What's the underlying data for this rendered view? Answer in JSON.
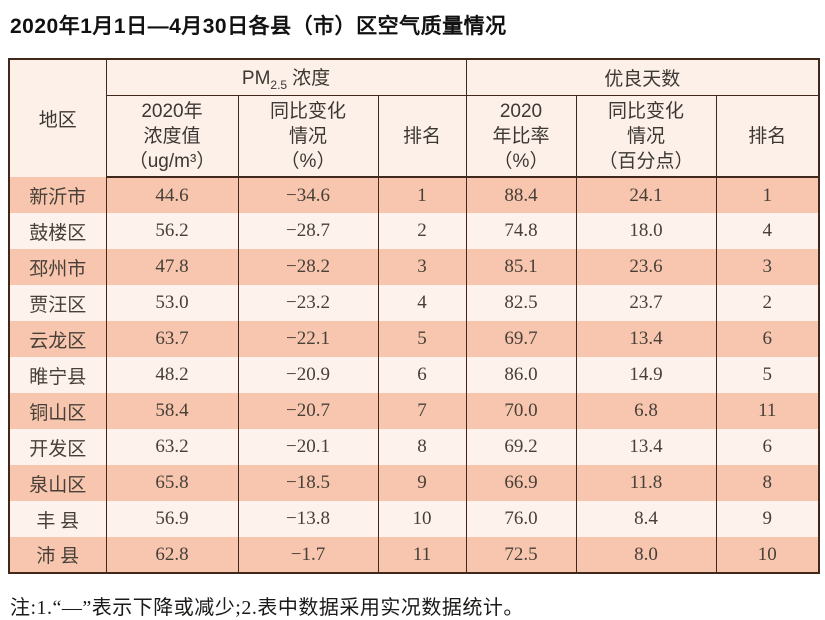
{
  "title": "2020年1月1日—4月30日各县（市）区空气质量情况",
  "table": {
    "region_header": "地区",
    "group_headers": {
      "pm25": {
        "prefix": "PM",
        "sub": "2.5",
        "suffix": "浓度"
      },
      "good_days": "优良天数"
    },
    "sub_headers": {
      "pm_value": [
        "2020年",
        "浓度值",
        "（ug/m³）"
      ],
      "pm_change": [
        "同比变化",
        "情况",
        "（%）"
      ],
      "pm_rank": "排名",
      "good_rate": [
        "2020",
        "年比率",
        "（%）"
      ],
      "good_change": [
        "同比变化",
        "情况",
        "（百分点）"
      ],
      "good_rank": "排名"
    },
    "rows": [
      {
        "region": "新沂市",
        "pm_value": "44.6",
        "pm_change": "−34.6",
        "pm_rank": "1",
        "good_rate": "88.4",
        "good_change": "24.1",
        "good_rank": "1"
      },
      {
        "region": "鼓楼区",
        "pm_value": "56.2",
        "pm_change": "−28.7",
        "pm_rank": "2",
        "good_rate": "74.8",
        "good_change": "18.0",
        "good_rank": "4"
      },
      {
        "region": "邳州市",
        "pm_value": "47.8",
        "pm_change": "−28.2",
        "pm_rank": "3",
        "good_rate": "85.1",
        "good_change": "23.6",
        "good_rank": "3"
      },
      {
        "region": "贾汪区",
        "pm_value": "53.0",
        "pm_change": "−23.2",
        "pm_rank": "4",
        "good_rate": "82.5",
        "good_change": "23.7",
        "good_rank": "2"
      },
      {
        "region": "云龙区",
        "pm_value": "63.7",
        "pm_change": "−22.1",
        "pm_rank": "5",
        "good_rate": "69.7",
        "good_change": "13.4",
        "good_rank": "6"
      },
      {
        "region": "睢宁县",
        "pm_value": "48.2",
        "pm_change": "−20.9",
        "pm_rank": "6",
        "good_rate": "86.0",
        "good_change": "14.9",
        "good_rank": "5"
      },
      {
        "region": "铜山区",
        "pm_value": "58.4",
        "pm_change": "−20.7",
        "pm_rank": "7",
        "good_rate": "70.0",
        "good_change": "6.8",
        "good_rank": "11"
      },
      {
        "region": "开发区",
        "pm_value": "63.2",
        "pm_change": "−20.1",
        "pm_rank": "8",
        "good_rate": "69.2",
        "good_change": "13.4",
        "good_rank": "6"
      },
      {
        "region": "泉山区",
        "pm_value": "65.8",
        "pm_change": "−18.5",
        "pm_rank": "9",
        "good_rate": "66.9",
        "good_change": "11.8",
        "good_rank": "8"
      },
      {
        "region": "丰 县",
        "pm_value": "56.9",
        "pm_change": "−13.8",
        "pm_rank": "10",
        "good_rate": "76.0",
        "good_change": "8.4",
        "good_rank": "9"
      },
      {
        "region": "沛 县",
        "pm_value": "62.8",
        "pm_change": "−1.7",
        "pm_rank": "11",
        "good_rate": "72.5",
        "good_change": "8.0",
        "good_rank": "10"
      }
    ]
  },
  "footnote": "注:1.“—”表示下降或减少;2.表中数据采用实况数据统计。",
  "colors": {
    "row_stripe_dark": "#f8c6ae",
    "row_stripe_light": "#fdf3ec",
    "header_bg": "#fcf0e8",
    "border": "#40281c",
    "text": "#474039"
  }
}
